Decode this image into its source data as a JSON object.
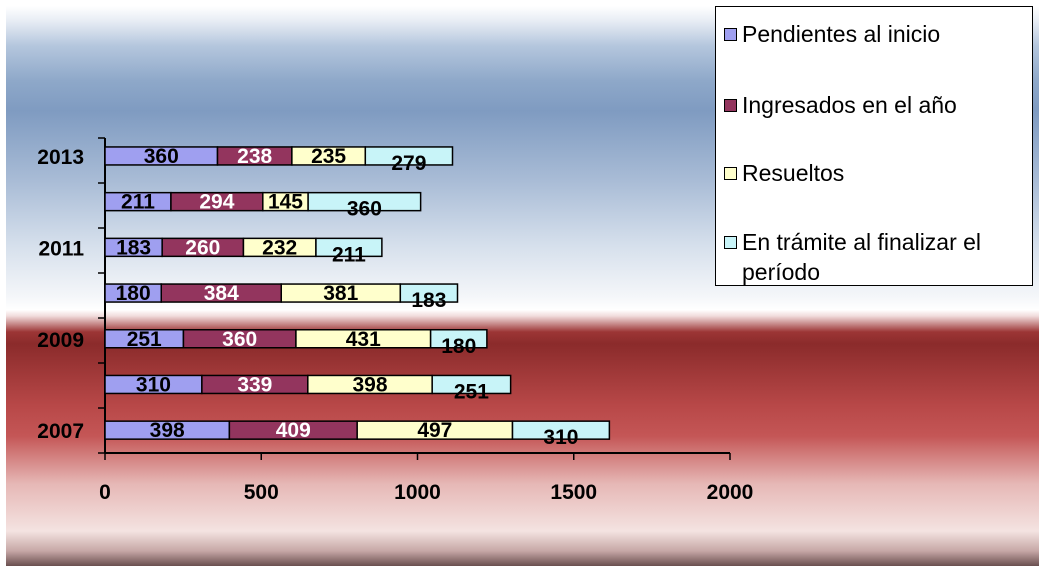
{
  "chart_data": {
    "type": "bar",
    "orientation": "horizontal",
    "stacked": true,
    "categories": [
      "2007",
      "",
      "2009",
      "",
      "2011",
      "",
      "2013"
    ],
    "series": [
      {
        "name": "Pendientes al inicio",
        "values": [
          398,
          310,
          251,
          180,
          183,
          211,
          360
        ],
        "color": "#9f9ff0"
      },
      {
        "name": "Ingresados en el año",
        "values": [
          409,
          339,
          360,
          384,
          260,
          294,
          238
        ],
        "color": "#93355e"
      },
      {
        "name": "Resueltos",
        "values": [
          497,
          398,
          431,
          381,
          232,
          145,
          235
        ],
        "color": "#ffffcc"
      },
      {
        "name": "En trámite al finalizar el período",
        "values": [
          310,
          251,
          180,
          183,
          211,
          360,
          279
        ],
        "color": "#c8f4f8"
      }
    ],
    "xticks": [
      "0",
      "500",
      "1000",
      "1500",
      "2000"
    ],
    "xlim": [
      0,
      2000
    ],
    "legend": "right",
    "label_colors": [
      "#000000",
      "#ffffff",
      "#000000",
      "#000000"
    ]
  }
}
